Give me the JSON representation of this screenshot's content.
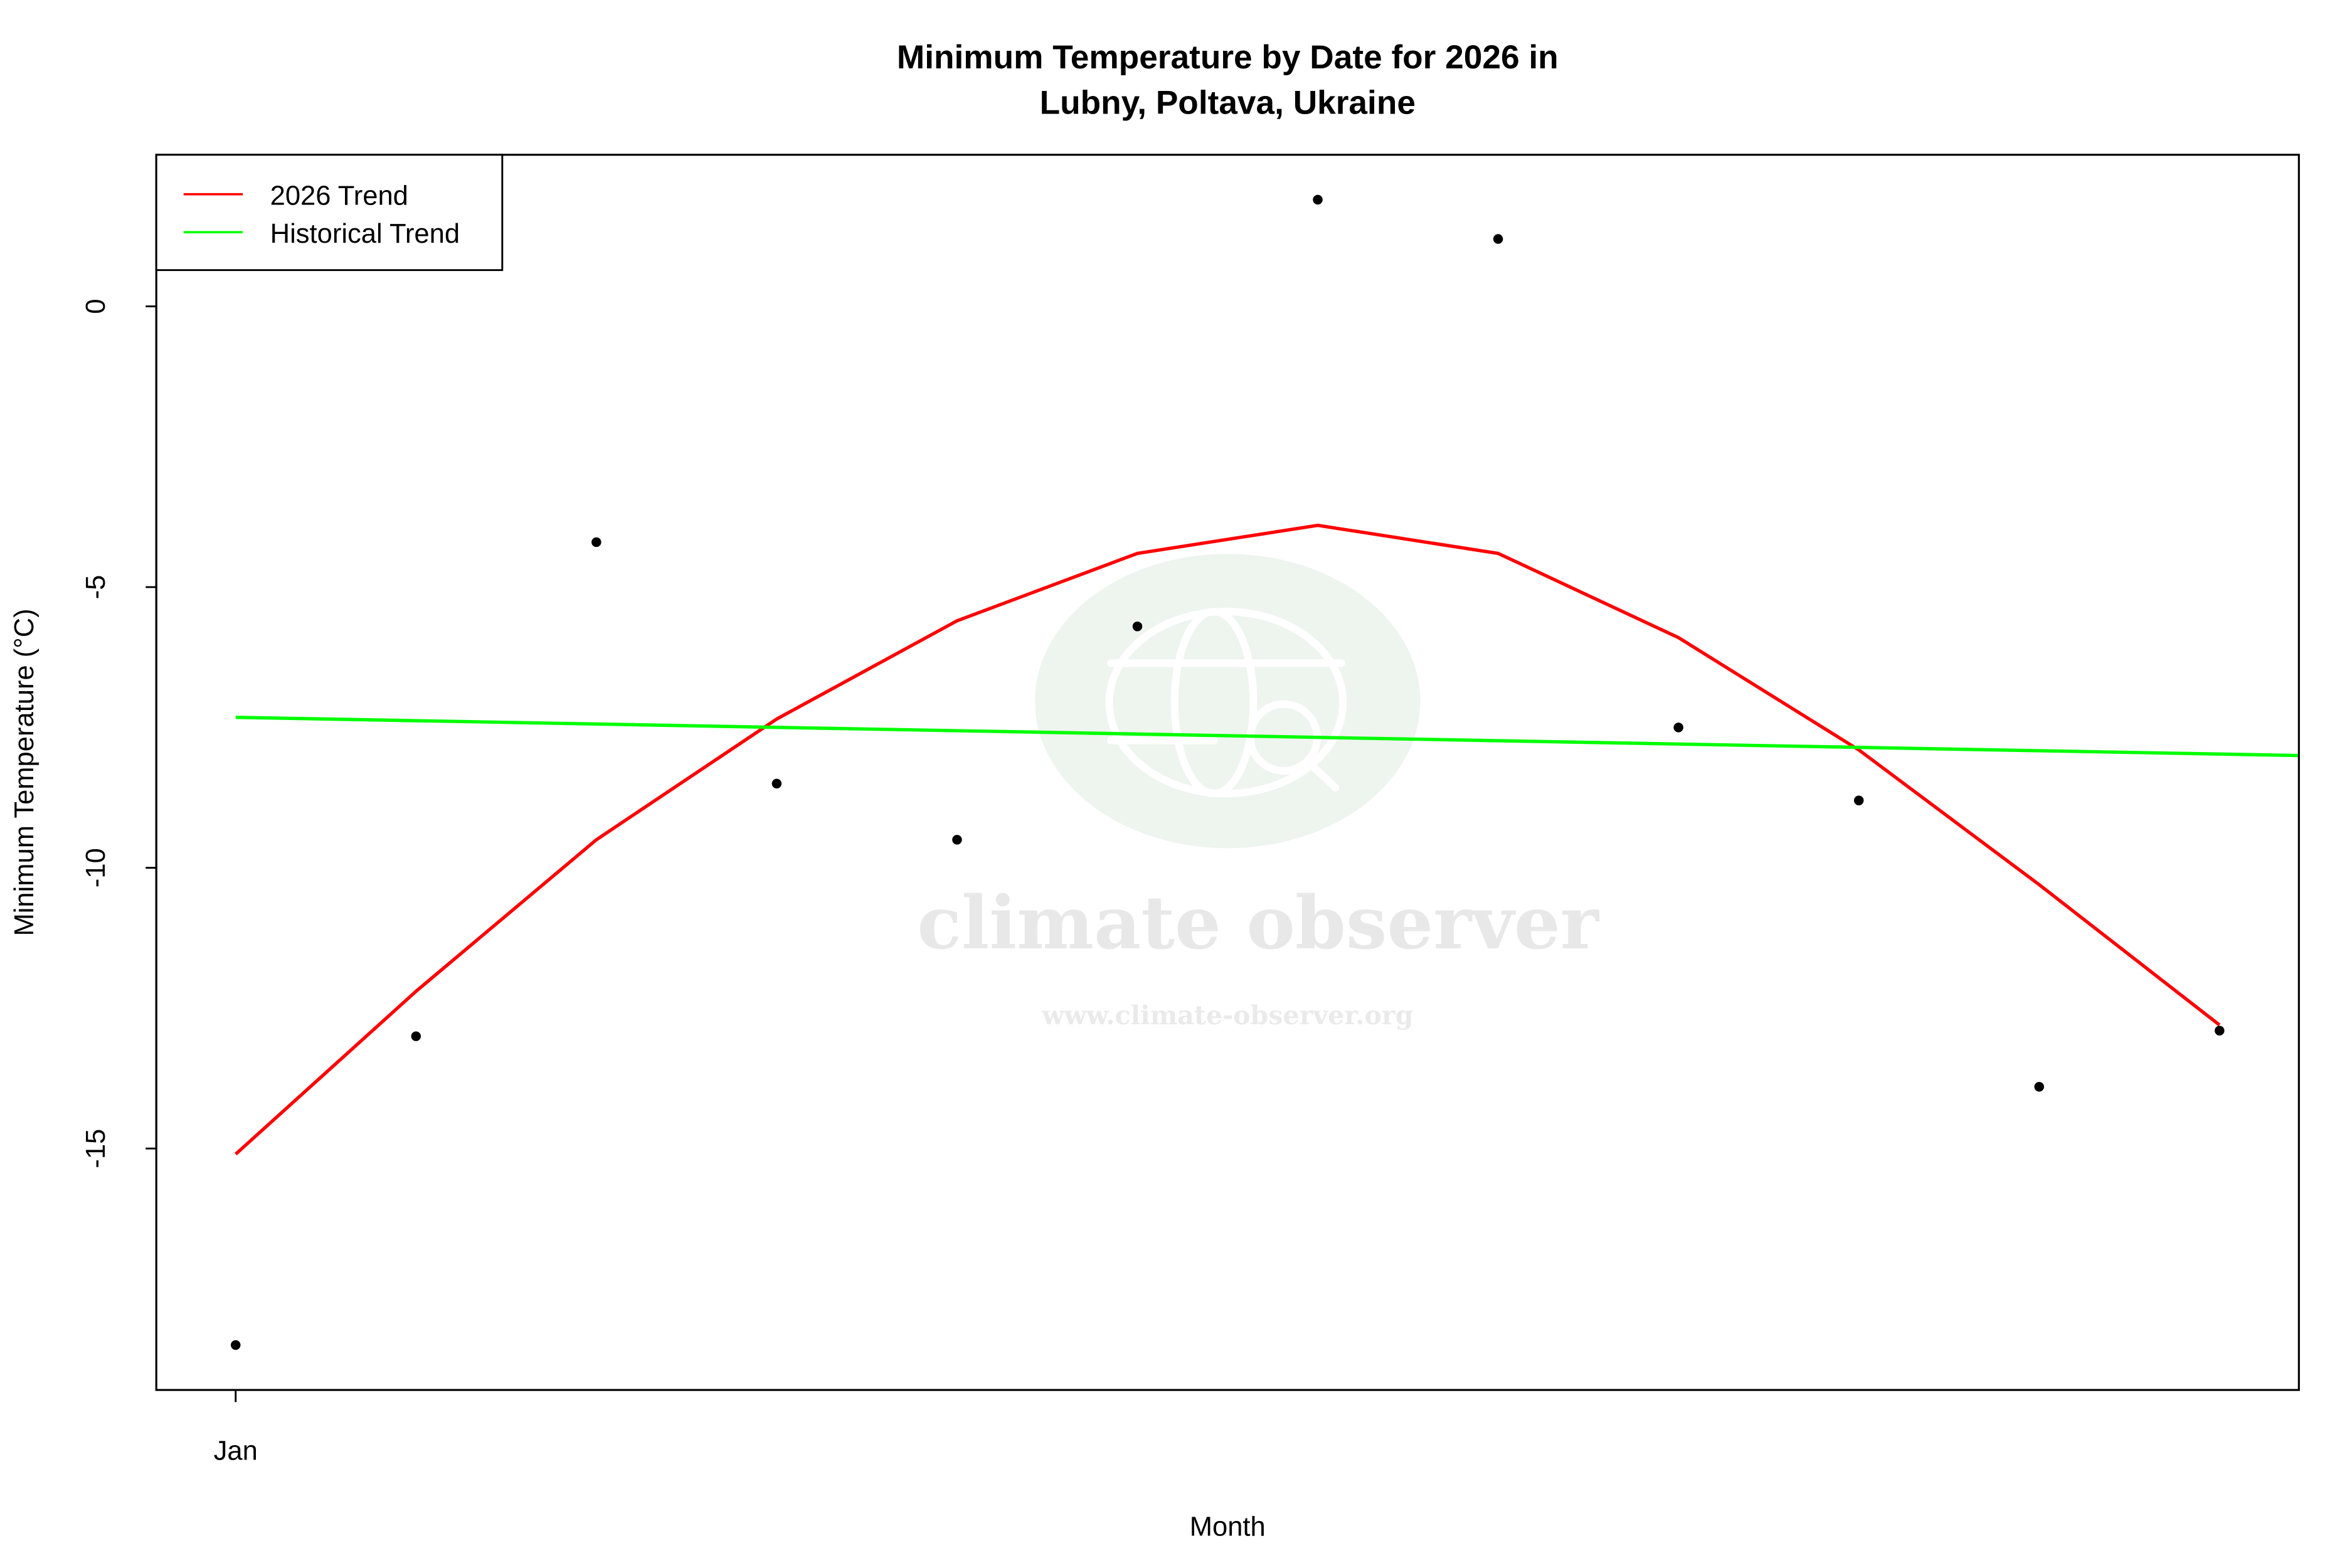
{
  "chart_data": {
    "type": "scatter",
    "title": [
      "Minimum Temperature by Date for 2026 in",
      "Lubny, Poltava, Ukraine"
    ],
    "xlabel": "Month",
    "ylabel": "Minimum Temperature (°C)",
    "x_tick_labels": [
      {
        "x": 1,
        "label": "Jan"
      }
    ],
    "y_ticks": [
      0,
      -5,
      -10,
      -15
    ],
    "xlim": [
      0.56,
      12.44
    ],
    "ylim": [
      -19.3,
      2.7
    ],
    "grid": false,
    "legend": {
      "position": "top-left",
      "entries": [
        {
          "label": "2026 Trend",
          "color": "#ff0000"
        },
        {
          "label": "Historical Trend",
          "color": "#00ff00"
        }
      ]
    },
    "points": {
      "color": "#000000",
      "x": [
        1,
        2,
        3,
        4,
        5,
        6,
        7,
        8,
        9,
        10,
        11,
        12
      ],
      "y": [
        -18.5,
        -13.0,
        -4.2,
        -8.5,
        -9.5,
        -5.7,
        1.9,
        1.2,
        -7.5,
        -8.8,
        -13.9,
        -12.9
      ]
    },
    "series": [
      {
        "name": "2026 Trend",
        "color": "#ff0000",
        "x": [
          1,
          2,
          3,
          4,
          5,
          6,
          7,
          8,
          9,
          10,
          11,
          12
        ],
        "y": [
          -15.1,
          -12.2,
          -9.5,
          -7.35,
          -5.6,
          -4.4,
          -3.9,
          -4.4,
          -5.9,
          -7.9,
          -10.3,
          -12.8
        ]
      },
      {
        "name": "Historical Trend",
        "color": "#00ff00",
        "x": [
          1,
          12.44
        ],
        "y": [
          -7.32,
          -8.0
        ]
      }
    ]
  },
  "watermark": {
    "brand": "climate observer",
    "url": "www.climate-observer.org",
    "icon": "globe-magnifier-icon"
  }
}
